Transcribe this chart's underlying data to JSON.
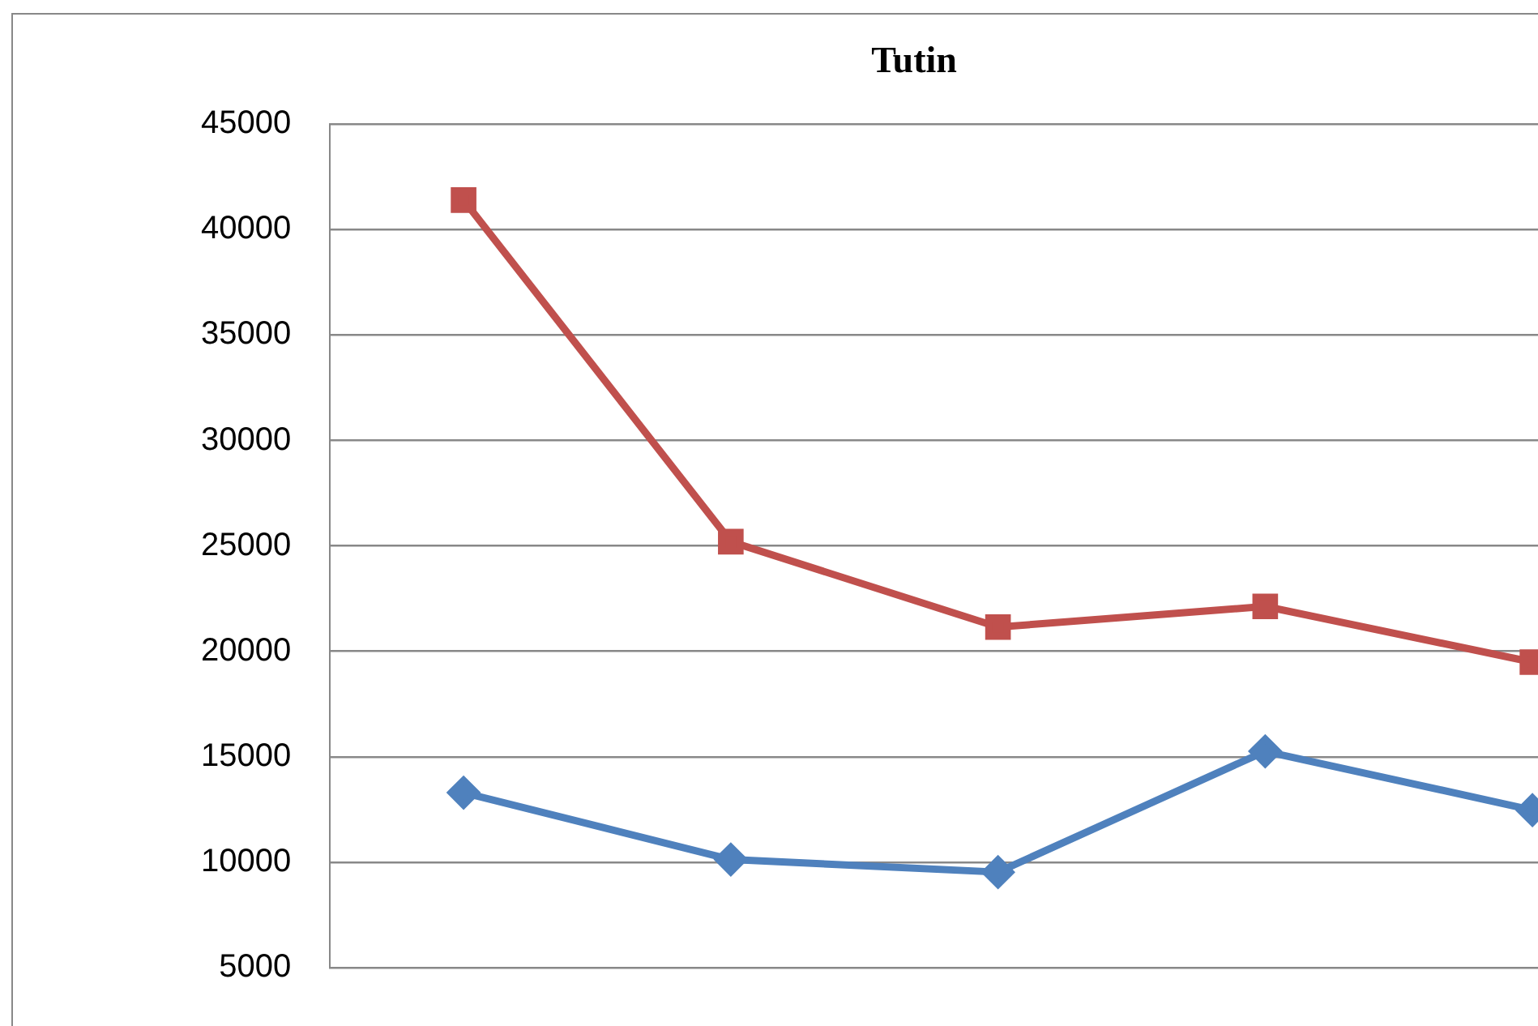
{
  "chart_data": {
    "type": "line",
    "title": "Tutin",
    "categories": [
      null,
      null,
      null,
      null,
      null
    ],
    "series": [
      {
        "color": "#4f81bd",
        "marker": "diamond",
        "values": [
          13300,
          10130,
          9530,
          15260,
          12470
        ]
      },
      {
        "color": "#c0504d",
        "marker": "square",
        "values": [
          41400,
          25200,
          21150,
          22130,
          19490
        ]
      }
    ],
    "ylim": [
      5000,
      45000
    ],
    "yticks": [
      5000,
      10000,
      15000,
      20000,
      25000,
      30000,
      35000,
      40000,
      45000
    ],
    "grid": "y",
    "tick_labels": "y"
  }
}
